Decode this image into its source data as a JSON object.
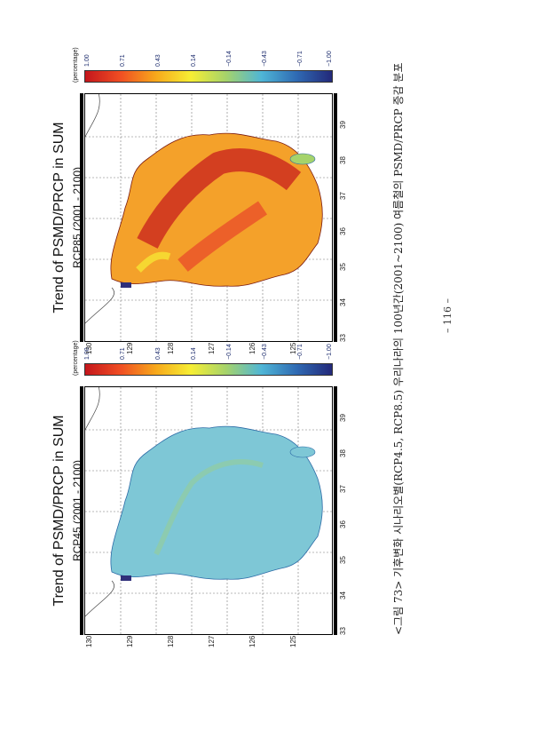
{
  "panels": [
    {
      "title": "Trend of PSMD/PRCP in SUM",
      "subtitle": "RCP45 (2001 - 2100)",
      "dominant_color": "#7ec7d6",
      "lon_ticks": [
        "125",
        "126",
        "127",
        "128",
        "129",
        "130"
      ],
      "lat_ticks": [
        "33",
        "34",
        "35",
        "36",
        "37",
        "38",
        "39"
      ]
    },
    {
      "title": "Trend of PSMD/PRCP in SUM",
      "subtitle": "RCP85 (2001 - 2100)",
      "dominant_color": "#e8442a",
      "lon_ticks": [
        "125",
        "126",
        "127",
        "128",
        "129",
        "130"
      ],
      "lat_ticks": [
        "33",
        "34",
        "35",
        "36",
        "37",
        "38",
        "39"
      ]
    }
  ],
  "colorbar": {
    "title": "(percentage)",
    "ticks": [
      "1.00",
      "0.71",
      "0.43",
      "0.14",
      "−0.14",
      "−0.43",
      "−0.71",
      "−1.00"
    ],
    "colors": [
      "#c4161c",
      "#f04e23",
      "#f7a81b",
      "#f6ee34",
      "#a5d36b",
      "#4fb6d6",
      "#2f6ab3",
      "#23297a"
    ]
  },
  "caption": "<그림 73> 기후변화 시나리오별(RCP4.5, RCP8.5) 우리나라의 100년간(2001~2100) 여름철의 PSMD/PRCP 증감 분포",
  "page_number": "– 116 –"
}
